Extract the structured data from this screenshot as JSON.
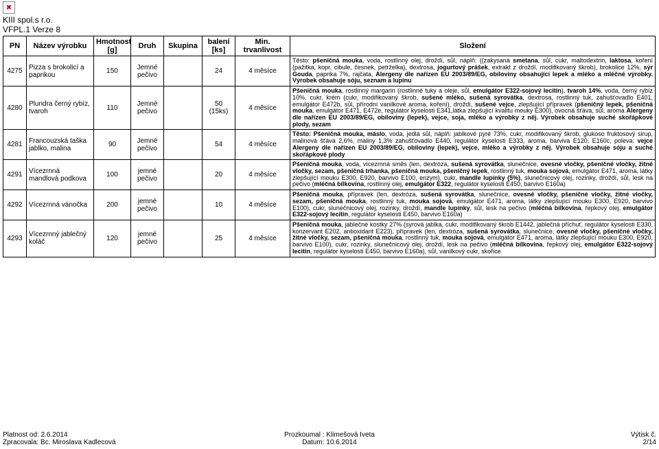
{
  "page": {
    "company_line1": "KIII spol.s r.o.",
    "company_line2": "VFPL.1 Verze 8",
    "broken_img_glyph": "✖",
    "footer_left_1": "Platnost od: 2.6.2014",
    "footer_left_2": "Zpracovala: Bc. Miroslava Kadlecová",
    "footer_center_1": "Prozkoumal : Klimešová Iveta",
    "footer_center_2": "Datum: 10.6.2014",
    "footer_right_1": "Výtisk č.",
    "footer_right_2": "2/14"
  },
  "headers": {
    "pn": "PN",
    "name": "Název výrobku",
    "wt": "Hmotnost [g]",
    "type": "Druh",
    "group": "Skupina",
    "pack": "balení [ks]",
    "shelf": "Min. trvanlivost",
    "comp": "Složení"
  },
  "rows": [
    {
      "pn": "4275",
      "name": "Pizza s brokolicí a paprikou",
      "wt": "150",
      "type": "Jemné pečivo",
      "group": "",
      "pack": "24",
      "shelf": "4 měsíce",
      "comp": "Těsto: <b>pšeničná mouka</b>, voda, rostlinný olej, droždí, sůl, náplň: ((zakysaná <b>smetana</b>, sůl, cukr, maltodextrin, <b>laktosa</b>, koření (pažitka, kopr, cibule, česnek, petrželka), dextrosa, <b>jogurtový prášek</b>, extrakt z droždí, modifikovaný škrob), brokolice 12%, <b>sýr Gouda</b>, paprika 7%, rajčata, <b>Alergeny dle nařízen EU 2003/89/EG, obiloviny obsahující lepek a mléko a mléčné výrobky. Výrobek obsahuje sóju, seznam a lupinu</b>"
    },
    {
      "pn": "4280",
      "name": "Plundra černý rybíz, tvaroh",
      "wt": "110",
      "type": "Jemné pečivo",
      "group": "",
      "pack": "50 (15ks)",
      "shelf": "4 měsíce",
      "comp": "<b>Pšeničná mouka</b>, rostlinný margarin (rostlinné tuky a oleje, sůl, <b>emulgátor E322-sojový lecitin</b>), <b>tvaroh 14%</b>, voda, černý rybíz 10%, cukr, krém (cukr, modifikovaný škrob, <b>sušené mléko, sušená syrovátka</b>, dextrosa, rostlinný tuk, zahušťovadlo E401, emulgátor E472b, sůl, přírodní vanilkové aroma, koření), droždí, <b>sušené vejce</b>, zlepšující přípravek (<b>pšeničný lepek, pšeničná mouka</b>, emulgátor E471, E472e, regulátor kyselosti E341,látka zlepšující kvalitu mouky E300), ovocná šťáva, sůl, aroma <b>Alergeny dle nařízen EU 2003/89/EG, obiloviny (lepek), vejce, soja, mléko a výrobky z něj. Výrobek obsahuje suché skořápkové plody, sezam</b>"
    },
    {
      "pn": "4281",
      "name": "Francouzská taška jablko, malina",
      "wt": "90",
      "type": "Jemné pečivo",
      "group": "",
      "pack": "54",
      "shelf": "4 měsíce",
      "comp": "<b>Těsto: Pšeničná mouka, máslo</b>, voda, jedlá sůl, náplň: jablkové pyré 73%, cukr, modifikovaný škrob, glukoso fruktosový sirup, malinová šťáva 2,6%, maliny 1,3% zahušťovadlo E440, regulátor kyselosti E333, aroma, barviva E120, E160c, poleva: <b>vejce</b> <b>Alergeny dle nařízen EU 2003/89/EG, obiloviny (lepek), vejce, mléko a výrobky z něj. Výrobek obsahuje sóju a suché skořápkové plody</b>"
    },
    {
      "pn": "4291",
      "name": "Vícezrnná mandlová podkova",
      "wt": "100",
      "type": "jemné pečivo",
      "group": "",
      "pack": "20",
      "shelf": "4 měsíce",
      "comp": "<b>Pšeničná mouka</b>, voda, vícezrnná směs (len, dextróza, <b>sušená syrovátka</b>, slunečnice, <b>ovesné vločky, pšeničné vločky, žitné vločky, sezam, pšeničná trhanka, pšeničná mouka, pšeničný lepek</b>, rostlinný tuk, <b>mouka sojová</b>, emulgátor E471, aroma, látky zlepšující mouku E300, E920, barvivo E100, enzym), cukr, <b>mandle lupínky (5%)</b>, slunečnicový olej, rozinky, droždí, sůl, lesk na pečivo (<b>mléčná bílkovina</b>, rostlinný olej, <b>emulgátor E322</b>, regulátor kyselosti E450, barvivo E160a)"
    },
    {
      "pn": "4292",
      "name": "Vícezrnná vánočka",
      "wt": "200",
      "type": "jemné pečivo",
      "group": "",
      "pack": "10",
      "shelf": "4 měsíce",
      "comp": "<b>Pšeničná mouka</b>, přípravek (len, dextróza, <b>sušená syrovátka</b>, slunečnice, <b>ovesné vločky, pšeničné vločky, žitné vločky, sezam, pšeničná mouka</b>, rostlinný tuk, <b>mouka sojová</b>, emulgátor E471, aroma, látky zlepšující mouku E300, E920, barvivo E100), cukr, slunečnicový olej, rozinky, droždí, <b>mandle lupínky</b>, sůl, lesk na pečivo (<b>mléčná bílkovina</b>, řepkový olej, <b>emulgátor E322-sojový lecitin</b>, regulátor kyselosti E450, barvivo E160a)"
    },
    {
      "pn": "4293",
      "name": "Vícezrnný jablečný koláč",
      "wt": "120",
      "type": "jemné pečivo",
      "group": "",
      "pack": "25",
      "shelf": "4 měsíce",
      "comp": "<b>Pšeničná mouka</b>, jablečné kostky 27% (syrová jablka, cukr, modifikovaný škrob E1442, jablečná příchuť, regulátor kyselosti E330, konzervant E202, antioxidant E223), přípravek (len, dextróza, <b>sušená syrovátka</b>, slunečnice, <b>ovesné vločky, pšeničné vločky, žitné vločky, sezam, pšeničná mouka</b>, rostlinný tuk, <b>mouka sojová</b>, emulgátor E471, aroma, látky zlepšující mouku E300, E920, barvivo E100), cukr, rozinky, slunečnicový olej, droždí, lesk na pečivo (<b>mléčná bílkovina</b>, řepkový olej, <b>emulgátor E322-sojový lecitin</b>, regulátor kyselosti E450, barvivo E160a), sůl, vanilkový cukr, skořice"
    }
  ]
}
